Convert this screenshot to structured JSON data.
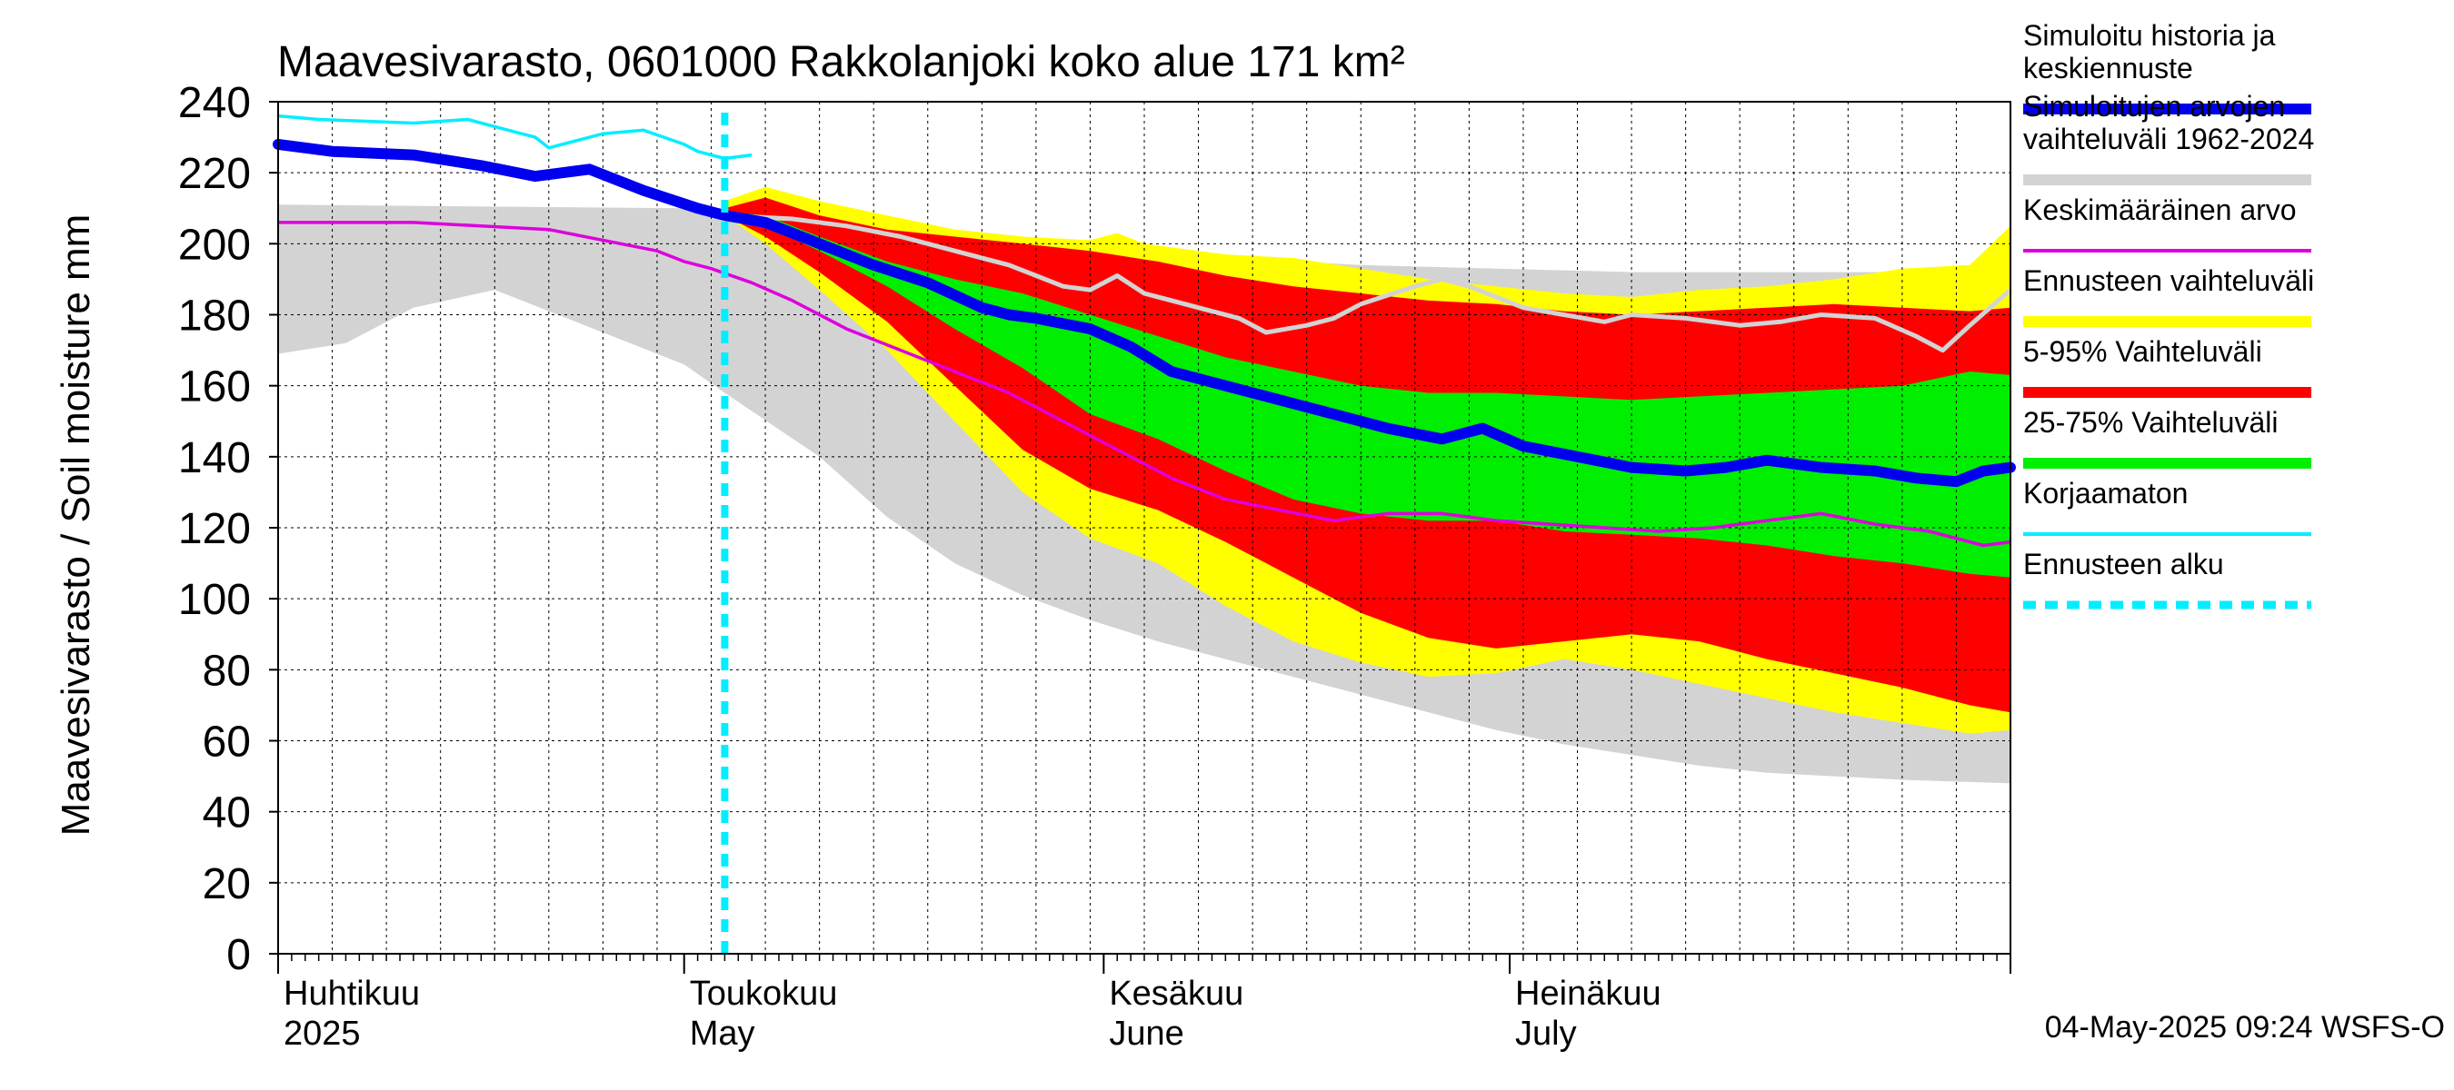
{
  "chart_data": {
    "type": "area",
    "title": "Maavesivarasto, 0601000 Rakkolanjoki koko alue 171 km²",
    "ylabel": "Maavesivarasto / Soil moisture   mm",
    "ylim": [
      0,
      240
    ],
    "yticks": [
      0,
      20,
      40,
      60,
      80,
      100,
      120,
      140,
      160,
      180,
      200,
      220,
      240
    ],
    "x_range_days": [
      0,
      128
    ],
    "month_labels": [
      {
        "day": 0,
        "fi": "Huhtikuu",
        "en": "2025"
      },
      {
        "day": 30,
        "fi": "Toukokuu",
        "en": "May"
      },
      {
        "day": 61,
        "fi": "Kesäkuu",
        "en": "June"
      },
      {
        "day": 91,
        "fi": "Heinäkuu",
        "en": "July"
      }
    ],
    "forecast_start_day": 33,
    "footer": "04-May-2025 09:24 WSFS-O",
    "colors": {
      "simulated": "#0000ee",
      "historical_range": "#d3d3d3",
      "mean": "#dd00dd",
      "forecast_range": "#ffff00",
      "p5_95": "#ff0000",
      "p25_75": "#00ee00",
      "uncorrected": "#00eeff",
      "forecast_start": "#00eeff",
      "future_history": "#d3d3d3"
    },
    "legend": [
      {
        "label_lines": [
          "Simuloitu historia ja",
          "keskiennuste"
        ],
        "color": "#0000ee",
        "style": "thick"
      },
      {
        "label_lines": [
          "Simuloitujen arvojen",
          "vaihteluväli 1962-2024"
        ],
        "color": "#d3d3d3",
        "style": "thick"
      },
      {
        "label_lines": [
          "Keskimääräinen arvo"
        ],
        "color": "#dd00dd",
        "style": "thin"
      },
      {
        "label_lines": [
          "Ennusteen vaihteluväli"
        ],
        "color": "#ffff00",
        "style": "thick"
      },
      {
        "label_lines": [
          "5-95% Vaihteluväli"
        ],
        "color": "#ff0000",
        "style": "thick"
      },
      {
        "label_lines": [
          "25-75% Vaihteluväli"
        ],
        "color": "#00ee00",
        "style": "thick"
      },
      {
        "label_lines": [
          "Korjaamaton"
        ],
        "color": "#00eeff",
        "style": "thin"
      },
      {
        "label_lines": [
          "Ennusteen alku"
        ],
        "color": "#00eeff",
        "style": "dashed"
      }
    ],
    "series": {
      "historical_range": {
        "upper": [
          [
            0,
            211
          ],
          [
            30,
            210
          ],
          [
            33,
            208
          ],
          [
            40,
            206
          ],
          [
            50,
            204
          ],
          [
            60,
            200
          ],
          [
            70,
            196
          ],
          [
            80,
            194
          ],
          [
            90,
            193
          ],
          [
            100,
            192
          ],
          [
            110,
            192
          ],
          [
            120,
            192
          ],
          [
            128,
            194
          ]
        ],
        "lower": [
          [
            0,
            169
          ],
          [
            5,
            172
          ],
          [
            10,
            182
          ],
          [
            16,
            187
          ],
          [
            22,
            178
          ],
          [
            30,
            166
          ],
          [
            33,
            158
          ],
          [
            40,
            140
          ],
          [
            45,
            123
          ],
          [
            50,
            110
          ],
          [
            55,
            101
          ],
          [
            60,
            94
          ],
          [
            65,
            88
          ],
          [
            70,
            83
          ],
          [
            75,
            78
          ],
          [
            80,
            73
          ],
          [
            85,
            68
          ],
          [
            90,
            63
          ],
          [
            95,
            59
          ],
          [
            100,
            56
          ],
          [
            105,
            53
          ],
          [
            110,
            51
          ],
          [
            115,
            50
          ],
          [
            120,
            49
          ],
          [
            128,
            48
          ]
        ]
      },
      "forecast_range": {
        "upper": [
          [
            33,
            212
          ],
          [
            36,
            216
          ],
          [
            40,
            212
          ],
          [
            45,
            208
          ],
          [
            50,
            204
          ],
          [
            55,
            202
          ],
          [
            60,
            201
          ],
          [
            62,
            203
          ],
          [
            64,
            200
          ],
          [
            70,
            197
          ],
          [
            75,
            196
          ],
          [
            80,
            193
          ],
          [
            85,
            190
          ],
          [
            90,
            188
          ],
          [
            95,
            186
          ],
          [
            100,
            185
          ],
          [
            105,
            187
          ],
          [
            110,
            188
          ],
          [
            115,
            190
          ],
          [
            120,
            193
          ],
          [
            125,
            194
          ],
          [
            128,
            205
          ]
        ],
        "lower": [
          [
            33,
            208
          ],
          [
            36,
            200
          ],
          [
            40,
            187
          ],
          [
            45,
            170
          ],
          [
            50,
            150
          ],
          [
            55,
            130
          ],
          [
            60,
            117
          ],
          [
            65,
            110
          ],
          [
            70,
            98
          ],
          [
            75,
            88
          ],
          [
            80,
            82
          ],
          [
            85,
            78
          ],
          [
            90,
            79
          ],
          [
            95,
            83
          ],
          [
            100,
            80
          ],
          [
            105,
            76
          ],
          [
            110,
            72
          ],
          [
            115,
            68
          ],
          [
            120,
            65
          ],
          [
            125,
            62
          ],
          [
            128,
            63
          ]
        ]
      },
      "p5_95": {
        "upper": [
          [
            33,
            210
          ],
          [
            36,
            213
          ],
          [
            40,
            208
          ],
          [
            45,
            204
          ],
          [
            50,
            202
          ],
          [
            55,
            200
          ],
          [
            60,
            198
          ],
          [
            65,
            195
          ],
          [
            70,
            191
          ],
          [
            75,
            188
          ],
          [
            80,
            186
          ],
          [
            85,
            184
          ],
          [
            90,
            183
          ],
          [
            95,
            181
          ],
          [
            100,
            180
          ],
          [
            105,
            181
          ],
          [
            110,
            182
          ],
          [
            115,
            183
          ],
          [
            120,
            182
          ],
          [
            125,
            181
          ],
          [
            128,
            182
          ]
        ],
        "lower": [
          [
            33,
            208
          ],
          [
            36,
            202
          ],
          [
            40,
            192
          ],
          [
            45,
            178
          ],
          [
            50,
            160
          ],
          [
            55,
            142
          ],
          [
            60,
            131
          ],
          [
            65,
            125
          ],
          [
            70,
            116
          ],
          [
            75,
            106
          ],
          [
            80,
            96
          ],
          [
            85,
            89
          ],
          [
            90,
            86
          ],
          [
            95,
            88
          ],
          [
            100,
            90
          ],
          [
            105,
            88
          ],
          [
            110,
            83
          ],
          [
            115,
            79
          ],
          [
            120,
            75
          ],
          [
            125,
            70
          ],
          [
            128,
            68
          ]
        ]
      },
      "p25_75": {
        "upper": [
          [
            33,
            209
          ],
          [
            36,
            208
          ],
          [
            40,
            202
          ],
          [
            45,
            195
          ],
          [
            50,
            190
          ],
          [
            55,
            186
          ],
          [
            60,
            180
          ],
          [
            65,
            174
          ],
          [
            70,
            168
          ],
          [
            75,
            164
          ],
          [
            80,
            160
          ],
          [
            85,
            158
          ],
          [
            90,
            158
          ],
          [
            95,
            157
          ],
          [
            100,
            156
          ],
          [
            105,
            157
          ],
          [
            110,
            158
          ],
          [
            115,
            159
          ],
          [
            120,
            160
          ],
          [
            125,
            164
          ],
          [
            128,
            163
          ]
        ],
        "lower": [
          [
            33,
            208
          ],
          [
            36,
            205
          ],
          [
            40,
            198
          ],
          [
            45,
            188
          ],
          [
            50,
            176
          ],
          [
            55,
            165
          ],
          [
            60,
            152
          ],
          [
            65,
            145
          ],
          [
            70,
            136
          ],
          [
            75,
            128
          ],
          [
            80,
            124
          ],
          [
            85,
            122
          ],
          [
            90,
            122
          ],
          [
            95,
            119
          ],
          [
            100,
            118
          ],
          [
            105,
            117
          ],
          [
            110,
            115
          ],
          [
            115,
            112
          ],
          [
            120,
            110
          ],
          [
            125,
            107
          ],
          [
            128,
            106
          ]
        ]
      },
      "future_history": [
        [
          33,
          208
        ],
        [
          38,
          207
        ],
        [
          42,
          205
        ],
        [
          46,
          202
        ],
        [
          50,
          198
        ],
        [
          54,
          194
        ],
        [
          58,
          188
        ],
        [
          60,
          187
        ],
        [
          62,
          191
        ],
        [
          64,
          186
        ],
        [
          68,
          182
        ],
        [
          71,
          179
        ],
        [
          73,
          175
        ],
        [
          76,
          177
        ],
        [
          78,
          179
        ],
        [
          80,
          183
        ],
        [
          84,
          188
        ],
        [
          86,
          190
        ],
        [
          88,
          188
        ],
        [
          92,
          182
        ],
        [
          95,
          180
        ],
        [
          98,
          178
        ],
        [
          100,
          180
        ],
        [
          104,
          179
        ],
        [
          108,
          177
        ],
        [
          111,
          178
        ],
        [
          114,
          180
        ],
        [
          118,
          179
        ],
        [
          121,
          174
        ],
        [
          123,
          170
        ],
        [
          125,
          177
        ],
        [
          128,
          187
        ]
      ],
      "mean": [
        [
          0,
          206
        ],
        [
          10,
          206
        ],
        [
          20,
          204
        ],
        [
          28,
          198
        ],
        [
          30,
          195
        ],
        [
          32,
          193
        ],
        [
          35,
          189
        ],
        [
          38,
          184
        ],
        [
          42,
          176
        ],
        [
          46,
          170
        ],
        [
          50,
          164
        ],
        [
          54,
          158
        ],
        [
          58,
          150
        ],
        [
          62,
          142
        ],
        [
          66,
          134
        ],
        [
          70,
          128
        ],
        [
          74,
          125
        ],
        [
          78,
          122
        ],
        [
          82,
          124
        ],
        [
          86,
          124
        ],
        [
          90,
          122
        ],
        [
          94,
          121
        ],
        [
          98,
          120
        ],
        [
          102,
          119
        ],
        [
          106,
          120
        ],
        [
          110,
          122
        ],
        [
          114,
          124
        ],
        [
          118,
          121
        ],
        [
          122,
          119
        ],
        [
          126,
          115
        ],
        [
          128,
          116
        ]
      ],
      "simulated": [
        [
          0,
          228
        ],
        [
          4,
          226
        ],
        [
          10,
          225
        ],
        [
          15,
          222
        ],
        [
          19,
          219
        ],
        [
          21,
          220
        ],
        [
          23,
          221
        ],
        [
          27,
          215
        ],
        [
          31,
          210
        ],
        [
          33,
          208
        ],
        [
          36,
          206
        ],
        [
          40,
          200
        ],
        [
          44,
          194
        ],
        [
          48,
          189
        ],
        [
          52,
          182
        ],
        [
          54,
          180
        ],
        [
          56,
          179
        ],
        [
          60,
          176
        ],
        [
          63,
          171
        ],
        [
          66,
          164
        ],
        [
          70,
          160
        ],
        [
          74,
          156
        ],
        [
          78,
          152
        ],
        [
          82,
          148
        ],
        [
          86,
          145
        ],
        [
          89,
          148
        ],
        [
          92,
          143
        ],
        [
          96,
          140
        ],
        [
          100,
          137
        ],
        [
          104,
          136
        ],
        [
          107,
          137
        ],
        [
          110,
          139
        ],
        [
          114,
          137
        ],
        [
          118,
          136
        ],
        [
          121,
          134
        ],
        [
          124,
          133
        ],
        [
          126,
          136
        ],
        [
          128,
          137
        ]
      ],
      "uncorrected": [
        [
          0,
          236
        ],
        [
          3,
          235
        ],
        [
          10,
          234
        ],
        [
          14,
          235
        ],
        [
          17,
          232
        ],
        [
          19,
          230
        ],
        [
          20,
          227
        ],
        [
          22,
          229
        ],
        [
          24,
          231
        ],
        [
          27,
          232
        ],
        [
          30,
          228
        ],
        [
          31,
          226
        ],
        [
          33,
          224
        ],
        [
          35,
          225
        ]
      ]
    }
  }
}
